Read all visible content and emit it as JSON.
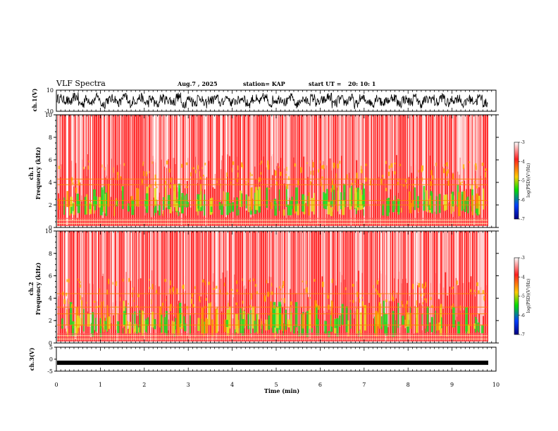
{
  "header": {
    "title": "VLF Spectra",
    "date": "Aug.7 , 2025",
    "station": "station= KAP",
    "start": "start UT =",
    "start_time": "20: 10: 1"
  },
  "chart_data": [
    {
      "type": "line",
      "name": "ch1-waveform",
      "ylabel": "ch.1(V)",
      "ylim": [
        -10,
        10
      ],
      "yticks": [
        "10",
        "-10"
      ],
      "values": [
        2.1,
        0.5,
        -1.2,
        3.4,
        -2.8,
        1.5,
        -0.6,
        2.9,
        -3.1,
        0.8,
        1.9,
        -1.7,
        3.2,
        -2.4,
        0.3,
        2.6,
        -1.9,
        1.1,
        -3.3,
        2.2,
        0.9,
        -0.8,
        3.5,
        -2.6,
        1.4,
        -1.3,
        2.7,
        -3.0,
        0.6,
        1.8,
        -2.1,
        3.1,
        -1.5,
        0.2,
        2.4,
        -2.9,
        1.6,
        -0.9,
        3.0,
        -2.2,
        0.7,
        2.0,
        -1.4,
        2.8,
        -3.2,
        1.2,
        -0.5,
        2.5,
        -2.0,
        0.4,
        3.3,
        -2.7,
        1.0,
        -1.1,
        2.3,
        -3.4,
        1.7,
        0.1,
        -2.3,
        2.9,
        -1.6,
        0.8,
        3.1,
        -2.5,
        1.3,
        -0.7,
        2.6,
        -2.8,
        0.5,
        1.9,
        -1.8,
        3.0,
        -2.1,
        0.9,
        2.2,
        -3.0,
        1.5,
        -0.4,
        2.7,
        -2.4
      ]
    },
    {
      "type": "heatmap",
      "name": "ch1-spectrogram",
      "ylabel_top": "ch.1",
      "ylabel": "Frequency (kHz)",
      "ylim": [
        0,
        10
      ],
      "yticks": [
        0,
        2,
        4,
        6,
        8,
        10
      ],
      "green_bands": [
        [
          1,
          3.5
        ]
      ],
      "orange_lines": [
        2.0,
        2.4,
        3.8,
        4.3
      ]
    },
    {
      "type": "heatmap",
      "name": "ch2-spectrogram",
      "ylabel_top": "ch.2",
      "ylabel": "Frequency (kHz)",
      "ylim": [
        0,
        10
      ],
      "yticks": [
        0,
        2,
        4,
        6,
        8,
        10
      ],
      "green_bands": [
        [
          0.5,
          3.3
        ]
      ],
      "orange_lines": [
        1.6,
        2.6,
        3.2,
        4.4
      ]
    },
    {
      "type": "line",
      "name": "ch3-waveform",
      "ylabel": "ch.3(V)",
      "ylim": [
        -5,
        5
      ],
      "yticks": [
        "5",
        "0",
        "-5"
      ],
      "level": -1.5
    }
  ],
  "xaxis": {
    "label": "Time (min)",
    "range": [
      0,
      10
    ],
    "ticks": [
      "0",
      "1",
      "2",
      "3",
      "4",
      "5",
      "6",
      "7",
      "8",
      "9",
      "10"
    ]
  },
  "colorbar": {
    "label": "log(PSD)(V²/Hz)",
    "ticks": [
      "-3",
      "-4",
      "-5",
      "-6",
      "-7"
    ],
    "colors": [
      "#ffffff",
      "#ff2020",
      "#ffcc00",
      "#00e000",
      "#0040ff",
      "#000080"
    ]
  }
}
